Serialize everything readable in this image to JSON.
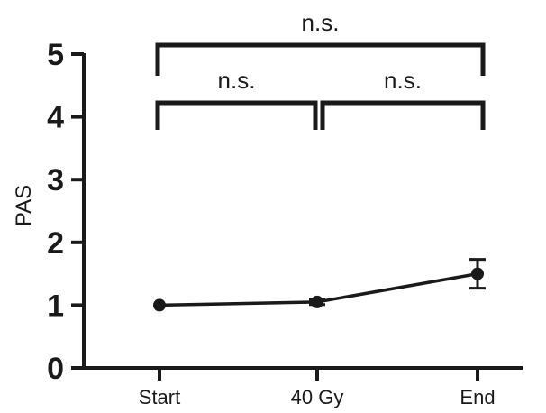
{
  "chart_data": {
    "type": "line",
    "title": "",
    "xlabel": "",
    "ylabel": "PAS",
    "categories": [
      "Start",
      "40 Gy",
      "End"
    ],
    "ylim": [
      0,
      5
    ],
    "yticks": [
      "0",
      "1",
      "2",
      "3",
      "4",
      "5"
    ],
    "series": [
      {
        "values": [
          1.0,
          1.05,
          1.5
        ],
        "errors": [
          0.0,
          0.04,
          0.23
        ]
      }
    ],
    "grid": false,
    "significance": [
      {
        "from": 1,
        "to": 2,
        "label": "n.s."
      },
      {
        "from": 2,
        "to": 3,
        "label": "n.s."
      },
      {
        "from": 1,
        "to": 3,
        "label": "n.s."
      }
    ],
    "colors": {
      "line": "#1a1a1a",
      "axis": "#1a1a1a"
    }
  }
}
